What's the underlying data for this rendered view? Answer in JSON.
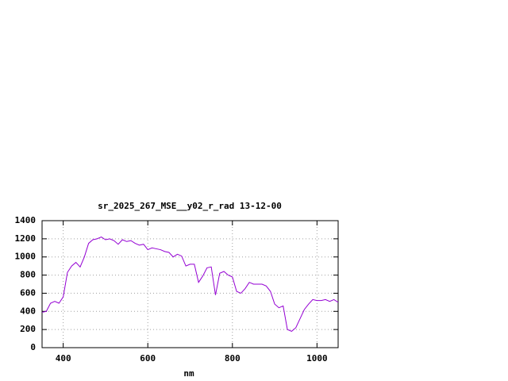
{
  "chart_data": {
    "type": "line",
    "title": "sr_2025_267_MSE__y02_r_rad 13-12-00",
    "x_label": "nm",
    "x": [
      350,
      360,
      370,
      380,
      390,
      400,
      410,
      420,
      430,
      440,
      450,
      460,
      470,
      480,
      490,
      500,
      510,
      520,
      530,
      540,
      550,
      560,
      570,
      580,
      590,
      600,
      610,
      620,
      630,
      640,
      650,
      660,
      670,
      680,
      690,
      700,
      710,
      720,
      730,
      740,
      750,
      760,
      770,
      780,
      790,
      800,
      810,
      820,
      830,
      840,
      850,
      860,
      870,
      880,
      890,
      900,
      910,
      920,
      930,
      940,
      950,
      960,
      970,
      980,
      990,
      1000,
      1010,
      1020,
      1030,
      1040,
      1050
    ],
    "values": [
      390,
      400,
      490,
      510,
      490,
      560,
      830,
      900,
      940,
      890,
      1000,
      1150,
      1190,
      1200,
      1220,
      1190,
      1200,
      1180,
      1140,
      1190,
      1170,
      1180,
      1150,
      1130,
      1140,
      1080,
      1100,
      1090,
      1080,
      1060,
      1050,
      1000,
      1030,
      1010,
      900,
      920,
      920,
      720,
      790,
      880,
      890,
      580,
      820,
      840,
      800,
      780,
      620,
      600,
      650,
      720,
      700,
      700,
      700,
      680,
      620,
      480,
      440,
      460,
      200,
      180,
      220,
      320,
      420,
      480,
      530,
      520,
      520,
      530,
      510,
      530,
      500
    ],
    "color": "#9400d3",
    "xlim": [
      350,
      1050
    ],
    "xticks": [
      400,
      600,
      800,
      1000
    ],
    "ylim": [
      0,
      1400
    ],
    "yticks": [
      0,
      200,
      400,
      600,
      800,
      1000,
      1200,
      1400
    ],
    "grid": true
  }
}
